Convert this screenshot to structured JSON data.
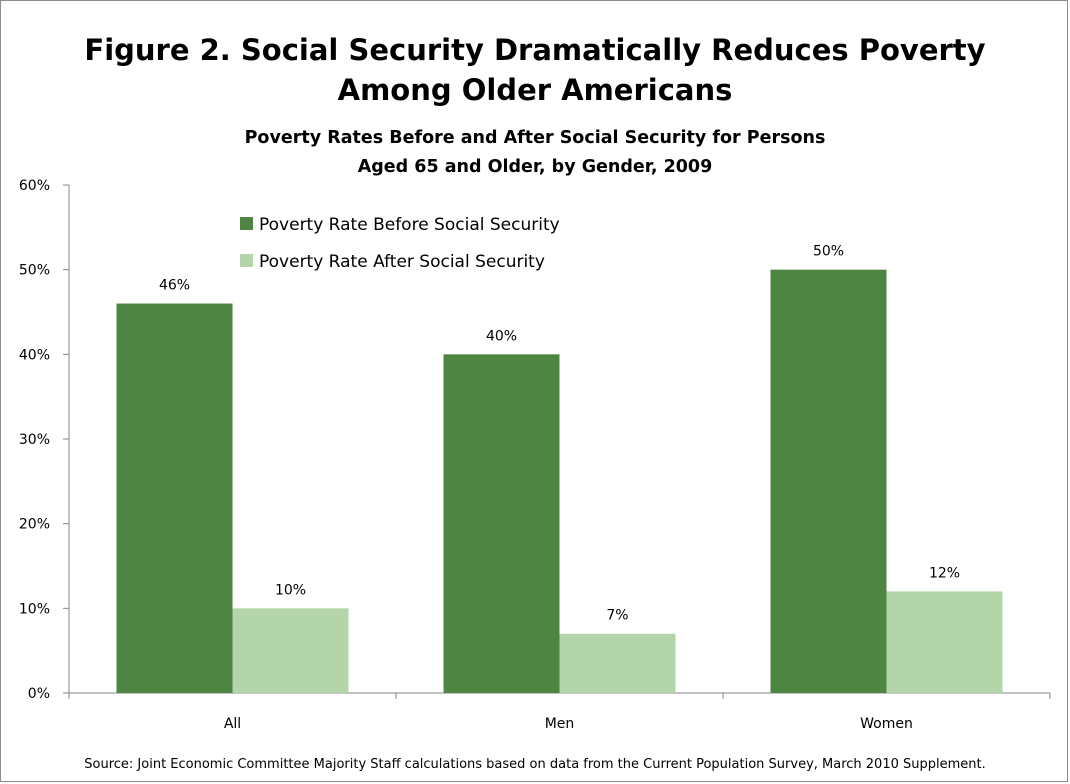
{
  "chart_data": {
    "type": "bar",
    "title_lines": [
      "Figure 2. Social Security Dramatically Reduces Poverty",
      "Among Older Americans"
    ],
    "subtitle_lines": [
      "Poverty Rates Before and After Social Security for Persons",
      "Aged 65 and Older, by Gender, 2009"
    ],
    "categories": [
      "All",
      "Men",
      "Women"
    ],
    "series": [
      {
        "name": "Poverty Rate Before Social Security",
        "values": [
          46,
          40,
          50
        ],
        "labels": [
          "46%",
          "40%",
          "50%"
        ],
        "color": "#4e8542"
      },
      {
        "name": "Poverty Rate After Social Security",
        "values": [
          10,
          7,
          12
        ],
        "labels": [
          "10%",
          "7%",
          "12%"
        ],
        "color": "#b3d5a9"
      }
    ],
    "ylim": [
      0,
      60
    ],
    "yticks": [
      0,
      10,
      20,
      30,
      40,
      50,
      60
    ],
    "ytick_labels": [
      "0%",
      "10%",
      "20%",
      "30%",
      "40%",
      "50%",
      "60%"
    ],
    "xlabel": "",
    "ylabel": "",
    "grid": false,
    "legend_position": "top-left",
    "source": "Source: Joint Economic Committee Majority Staff calculations based on data from the Current Population Survey, March 2010  Supplement."
  }
}
